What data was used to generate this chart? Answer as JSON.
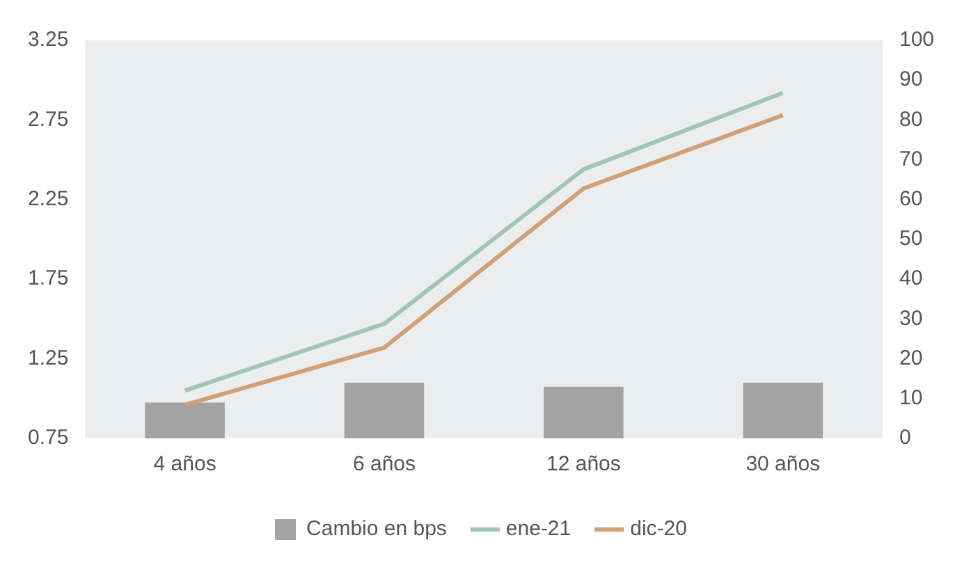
{
  "chart_data": {
    "type": "line",
    "categories": [
      "4 años",
      "6 años",
      "12 años",
      "30 años"
    ],
    "series": [
      {
        "name": "Cambio en bps",
        "type": "bar",
        "axis": "y2",
        "color": "#a3a3a3",
        "values": [
          9,
          14,
          13,
          14
        ]
      },
      {
        "name": "ene-21",
        "color": "#9fc5b8",
        "values": [
          1.05,
          1.47,
          2.44,
          2.92
        ]
      },
      {
        "name": "dic-20",
        "color": "#d0a077",
        "values": [
          0.96,
          1.32,
          2.32,
          2.78
        ]
      }
    ],
    "ylim": [
      0.75,
      3.25
    ],
    "yticks": [
      0.75,
      1.25,
      1.75,
      2.25,
      2.75,
      3.25
    ],
    "y2lim": [
      0,
      100
    ],
    "y2ticks": [
      0,
      10,
      20,
      30,
      40,
      50,
      60,
      70,
      80,
      90,
      100
    ],
    "grid": false,
    "legend": "bottom",
    "marker": "none",
    "line_style": "solid"
  }
}
